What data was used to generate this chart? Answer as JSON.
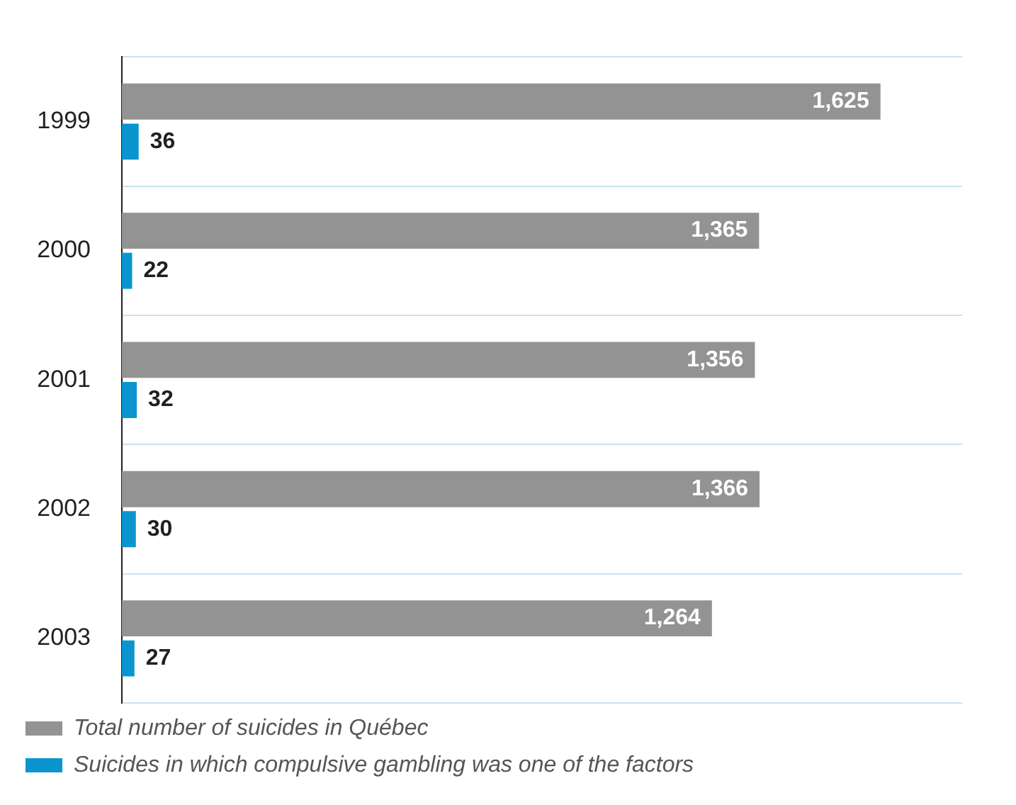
{
  "chart_data": {
    "type": "bar",
    "orientation": "horizontal",
    "categories": [
      "1999",
      "2000",
      "2001",
      "2002",
      "2003"
    ],
    "series": [
      {
        "name": "Total number of suicides in Québec",
        "color": "#939393",
        "values": [
          1625,
          1365,
          1356,
          1366,
          1264
        ],
        "value_labels": [
          "1,625",
          "1,365",
          "1,356",
          "1,366",
          "1,264"
        ]
      },
      {
        "name": "Suicides in which compulsive gambling was one of the factors",
        "color": "#0a95cf",
        "values": [
          36,
          22,
          32,
          30,
          27
        ],
        "value_labels": [
          "36",
          "22",
          "32",
          "30",
          "27"
        ]
      }
    ],
    "grid": "y",
    "legend": "bottom left",
    "tick_labels": "y"
  }
}
